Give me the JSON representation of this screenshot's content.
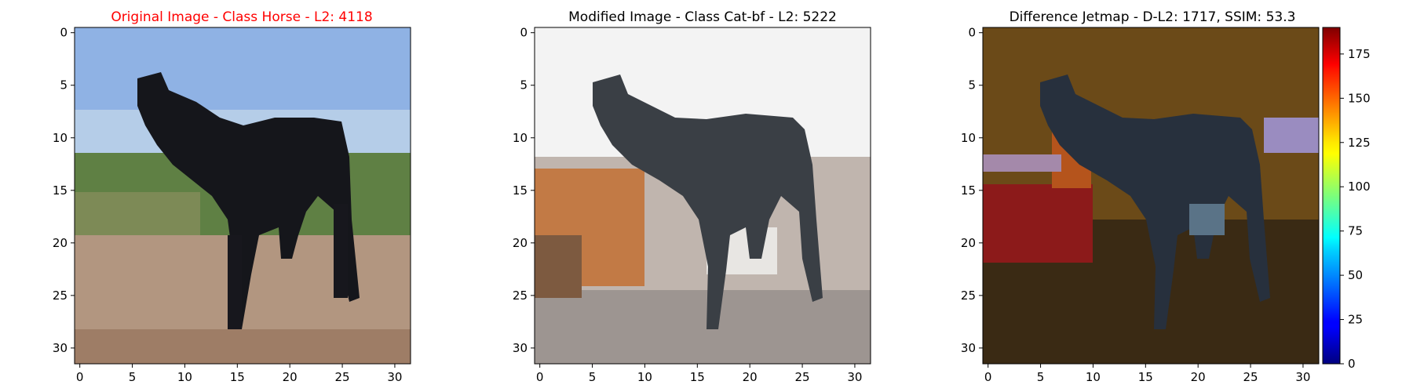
{
  "figure": {
    "panels": [
      {
        "title": "Original Image - Class Horse - L2: 4118",
        "title_color": "#ff0000"
      },
      {
        "title": "Modified Image - Class Cat-bf - L2: 5222",
        "title_color": "#000000"
      },
      {
        "title": "Difference Jetmap - D-L2: 1717, SSIM: 53.3",
        "title_color": "#000000"
      }
    ]
  },
  "chart_data": [
    {
      "type": "heatmap",
      "title": "Original Image - Class Horse - L2: 4118",
      "image": "32x32 pixelated photo of a black horse standing on sandy ground, blue sky and green bushes behind",
      "x_ticks": [
        0,
        5,
        10,
        15,
        20,
        25,
        30
      ],
      "y_ticks": [
        0,
        5,
        10,
        15,
        20,
        25,
        30
      ],
      "xlim": [
        -0.5,
        31.5
      ],
      "ylim": [
        31.5,
        -0.5
      ]
    },
    {
      "type": "heatmap",
      "title": "Modified Image - Class Cat-bf - L2: 5222",
      "image": "32x32 pixelated, adversarially modified version: horse on near-white background with orange/brown blotches on the left",
      "x_ticks": [
        0,
        5,
        10,
        15,
        20,
        25,
        30
      ],
      "y_ticks": [
        0,
        5,
        10,
        15,
        20,
        25,
        30
      ],
      "xlim": [
        -0.5,
        31.5
      ],
      "ylim": [
        31.5,
        -0.5
      ]
    },
    {
      "type": "heatmap",
      "title": "Difference Jetmap - D-L2: 1717, SSIM: 53.3",
      "image": "32x32 dark brownish difference map with horse outline, red patches on the left and purple/blue patches",
      "x_ticks": [
        0,
        5,
        10,
        15,
        20,
        25,
        30
      ],
      "y_ticks": [
        0,
        5,
        10,
        15,
        20,
        25,
        30
      ],
      "xlim": [
        -0.5,
        31.5
      ],
      "ylim": [
        31.5,
        -0.5
      ],
      "colorbar": {
        "colormap": "jet",
        "range": [
          0,
          190
        ],
        "ticks": [
          0,
          25,
          50,
          75,
          100,
          125,
          150,
          175
        ]
      }
    }
  ]
}
